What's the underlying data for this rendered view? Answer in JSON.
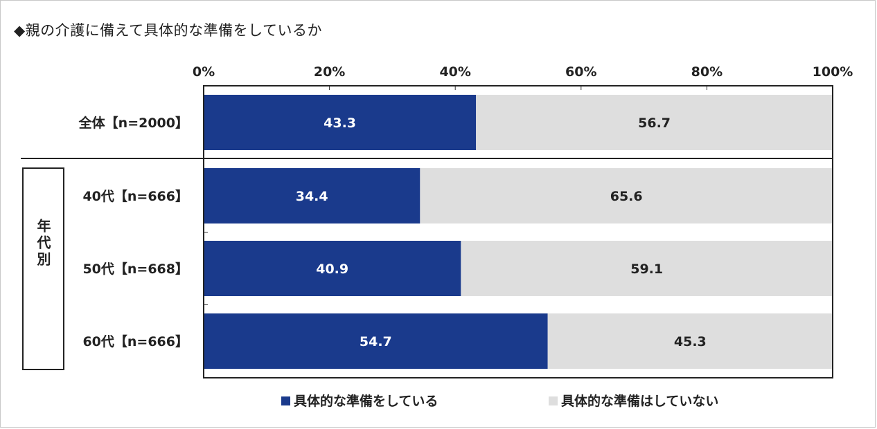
{
  "title": "◆親の介護に備えて具体的な準備をしているか",
  "chart_data": {
    "type": "bar",
    "orientation": "horizontal",
    "stacked": true,
    "xlim": [
      0,
      100
    ],
    "x_ticks": [
      "0%",
      "20%",
      "40%",
      "60%",
      "80%",
      "100%"
    ],
    "categories": [
      "全体【n=2000】",
      "40代【n=666】",
      "50代【n=668】",
      "60代【n=666】"
    ],
    "series": [
      {
        "name": "具体的な準備をしている",
        "values": [
          43.3,
          34.4,
          40.9,
          54.7
        ],
        "color": "#1a3a8c",
        "label_color": "#ffffff"
      },
      {
        "name": "具体的な準備はしていない",
        "values": [
          56.7,
          65.6,
          59.1,
          45.3
        ],
        "color": "#dedede",
        "label_color": "#222222"
      }
    ],
    "value_labels": [
      [
        "43.3",
        "34.4",
        "40.9",
        "54.7"
      ],
      [
        "56.7",
        "65.6",
        "59.1",
        "45.3"
      ]
    ],
    "group_label": "年代別",
    "legend_position": "bottom"
  }
}
